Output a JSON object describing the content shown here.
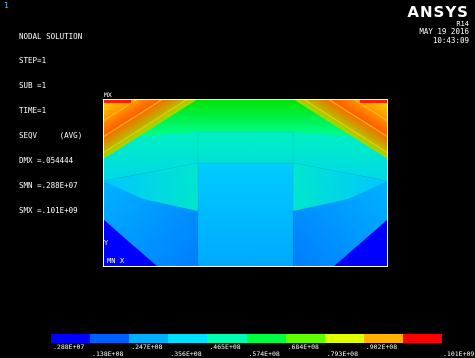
{
  "window_number": "1",
  "info": {
    "title": "NODAL SOLUTION",
    "lines": [
      "STEP=1",
      "SUB =1",
      "TIME=1",
      "SEQV     (AVG)",
      "DMX =.054444",
      "SMN =.288E+07",
      "SMX =.101E+09"
    ]
  },
  "brand": {
    "name": "ANSYS",
    "release": "R14",
    "date": "MAY 19 2016",
    "time": "10:43:09"
  },
  "markers": {
    "max": "MX",
    "min": "MN",
    "axis_x": "X",
    "axis_y": "Y"
  },
  "legend": {
    "colors": [
      "#0000ff",
      "#0060ff",
      "#00b0ff",
      "#00e0ff",
      "#00ffb0",
      "#00ff40",
      "#60ff00",
      "#e0ff00",
      "#ffb000",
      "#ff0000"
    ],
    "labels_top": [
      ".288E+07",
      ".247E+08",
      ".465E+08",
      ".684E+08",
      ".902E+08"
    ],
    "labels_bottom": [
      ".138E+08",
      ".356E+08",
      ".574E+08",
      ".793E+08",
      ".101E+09"
    ]
  }
}
